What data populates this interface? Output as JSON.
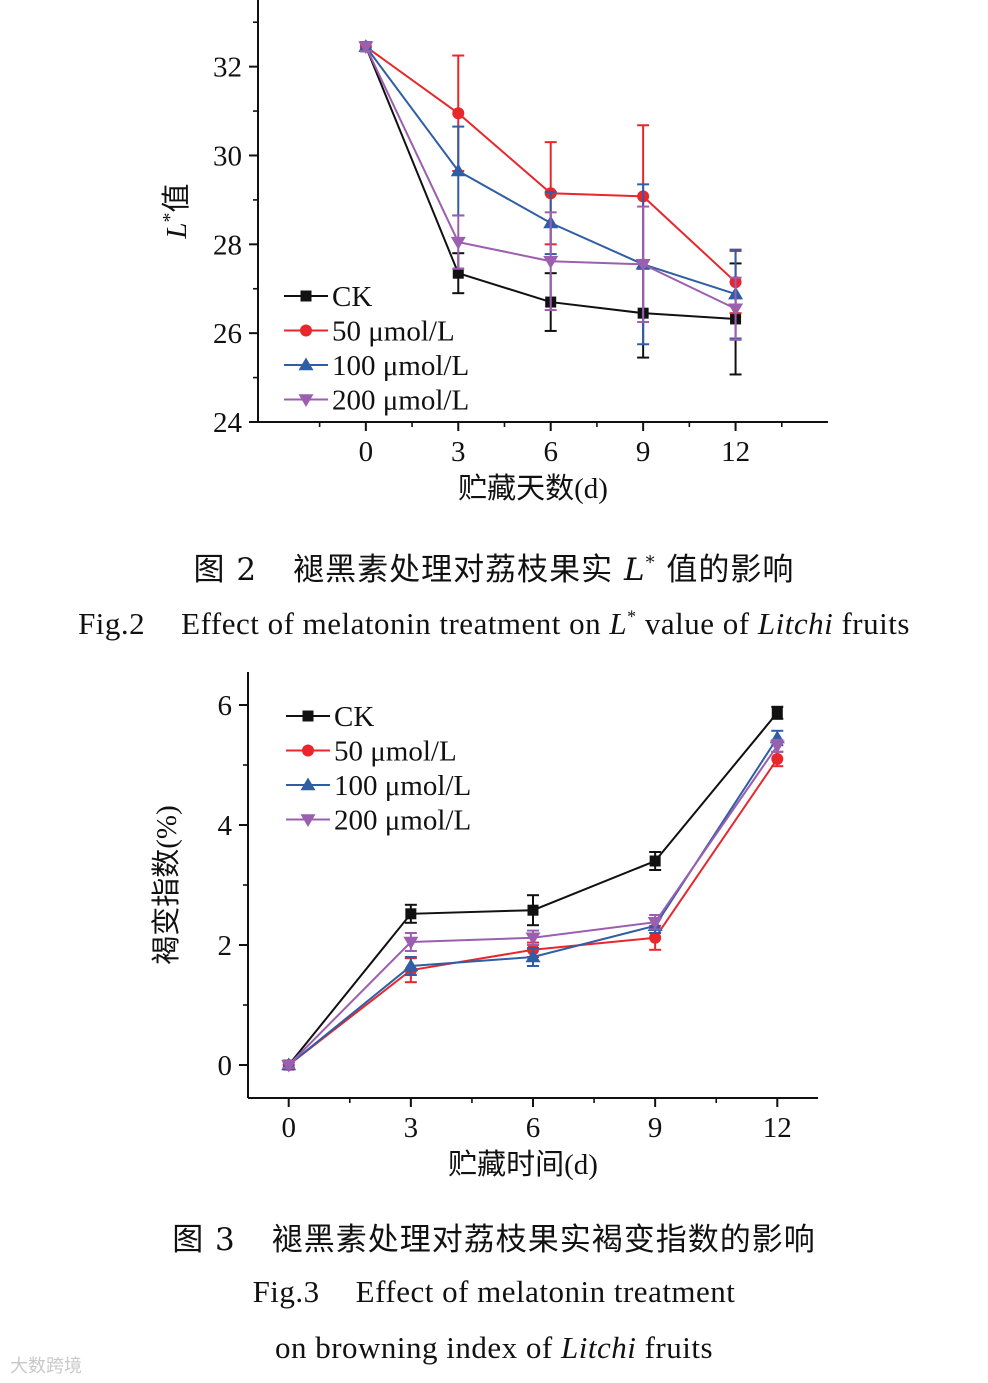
{
  "chart_data": [
    {
      "type": "line",
      "ylabel": "L*值",
      "ylabel_main": "L",
      "ylabel_sup": "*",
      "ylabel_suffix": "值",
      "xlabel": "贮藏天数(d)",
      "x": [
        0,
        3,
        6,
        9,
        12
      ],
      "xlim": [
        -3.5,
        15
      ],
      "ylim": [
        24,
        33.5
      ],
      "yticks": [
        24,
        26,
        28,
        30,
        32
      ],
      "xticks": [
        0,
        3,
        6,
        9,
        12
      ],
      "legend_position": "bottom-left",
      "series": [
        {
          "name": "CK",
          "marker": "square",
          "color": "#111111",
          "values": [
            32.45,
            27.35,
            26.7,
            26.45,
            26.32
          ],
          "errors": [
            0.1,
            0.45,
            0.65,
            1.0,
            1.25
          ]
        },
        {
          "name": "50 μmol/L",
          "marker": "circle",
          "color": "#e8262b",
          "values": [
            32.45,
            30.95,
            29.15,
            29.08,
            27.15
          ],
          "errors": [
            0.1,
            1.3,
            1.15,
            1.6,
            0.7
          ]
        },
        {
          "name": "100 μmol/L",
          "marker": "triangle-up",
          "color": "#2f5ea6",
          "values": [
            32.45,
            29.65,
            28.48,
            27.55,
            26.88
          ],
          "errors": [
            0.1,
            1.0,
            0.7,
            1.8,
            1.0
          ]
        },
        {
          "name": "200 μmol/L",
          "marker": "triangle-down",
          "color": "#9b5fb0",
          "values": [
            32.45,
            28.05,
            27.62,
            27.55,
            26.55
          ],
          "errors": [
            0.1,
            0.6,
            1.1,
            1.3,
            0.7
          ]
        }
      ]
    },
    {
      "type": "line",
      "ylabel": "褐变指数(%)",
      "xlabel": "贮藏时间(d)",
      "x": [
        0,
        3,
        6,
        9,
        12
      ],
      "xlim": [
        -1,
        13
      ],
      "ylim": [
        -0.55,
        6.55
      ],
      "yticks": [
        0,
        2,
        4,
        6
      ],
      "xticks": [
        0,
        3,
        6,
        9,
        12
      ],
      "legend_position": "top-left",
      "series": [
        {
          "name": "CK",
          "marker": "square",
          "color": "#111111",
          "values": [
            0,
            2.52,
            2.58,
            3.4,
            5.87
          ],
          "errors": [
            0.05,
            0.15,
            0.25,
            0.15,
            0.1
          ]
        },
        {
          "name": "50 μmol/L",
          "marker": "circle",
          "color": "#e8262b",
          "values": [
            0,
            1.58,
            1.92,
            2.12,
            5.1
          ],
          "errors": [
            0.05,
            0.2,
            0.12,
            0.2,
            0.12
          ]
        },
        {
          "name": "100 μmol/L",
          "marker": "triangle-up",
          "color": "#2f5ea6",
          "values": [
            0,
            1.65,
            1.8,
            2.32,
            5.45
          ],
          "errors": [
            0.05,
            0.15,
            0.15,
            0.12,
            0.12
          ]
        },
        {
          "name": "200 μmol/L",
          "marker": "triangle-down",
          "color": "#9b5fb0",
          "values": [
            0,
            2.05,
            2.12,
            2.38,
            5.32
          ],
          "errors": [
            0.05,
            0.15,
            0.12,
            0.12,
            0.1
          ]
        }
      ]
    }
  ],
  "captions": {
    "fig2_cn_prefix": "图 2",
    "fig2_cn_text": "褪黑素处理对荔枝果实 ",
    "fig2_cn_L": "L",
    "fig2_cn_sup": "*",
    "fig2_cn_end": " 值的影响",
    "fig2_en_prefix": "Fig.2",
    "fig2_en_text": "Effect of melatonin treatment on ",
    "fig2_en_L": "L",
    "fig2_en_sup": "*",
    "fig2_en_mid": " value of ",
    "fig2_en_italic": "Litchi",
    "fig2_en_end": " fruits",
    "fig3_cn_prefix": "图 3",
    "fig3_cn_text": "褪黑素处理对荔枝果实褐变指数的影响",
    "fig3_en_prefix": "Fig.3",
    "fig3_en_line1": "Effect of melatonin treatment",
    "fig3_en_line2_a": "on browning index of ",
    "fig3_en_italic": "Litchi",
    "fig3_en_line2_b": " fruits"
  },
  "watermark": "大数跨境"
}
